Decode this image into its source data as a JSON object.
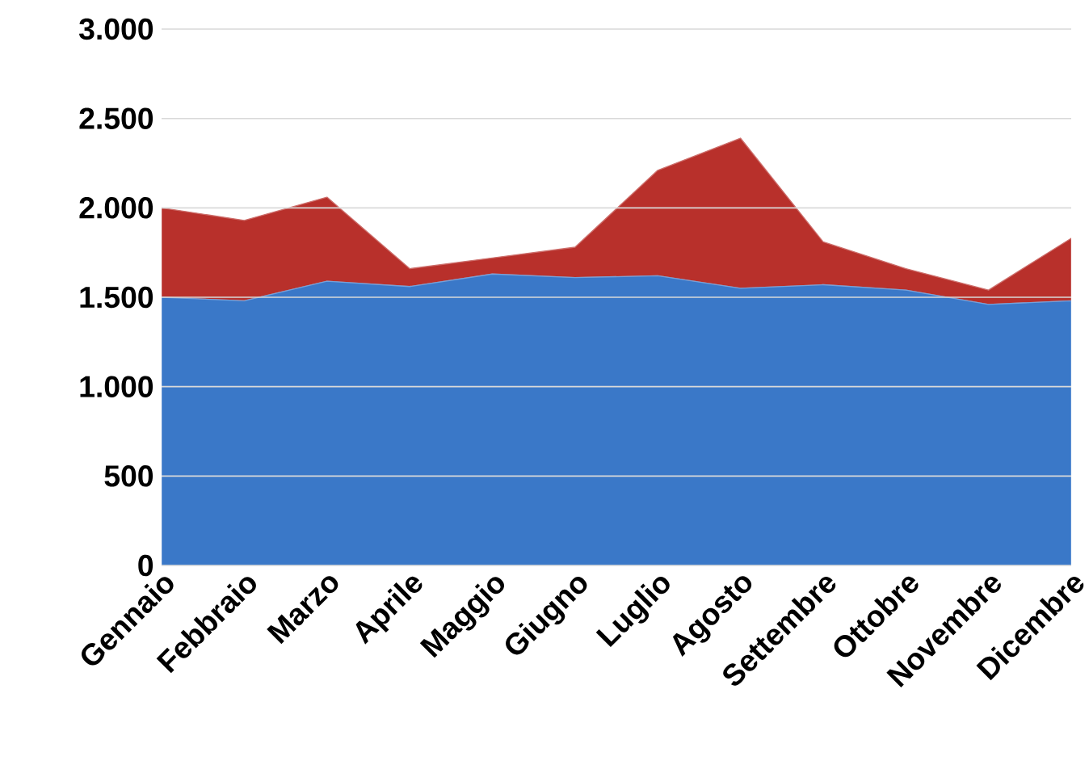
{
  "chart_data": {
    "type": "area",
    "categories": [
      "Gennaio",
      "Febbraio",
      "Marzo",
      "Aprile",
      "Maggio",
      "Giugno",
      "Luglio",
      "Agosto",
      "Settembre",
      "Ottobre",
      "Novembre",
      "Dicembre"
    ],
    "series": [
      {
        "color": "#3a78c8",
        "values": [
          1500,
          1480,
          1590,
          1560,
          1630,
          1610,
          1620,
          1550,
          1570,
          1540,
          1460,
          1480
        ]
      },
      {
        "color": "#b8302b",
        "values": [
          500,
          450,
          470,
          100,
          90,
          170,
          590,
          840,
          240,
          120,
          80,
          350
        ]
      }
    ],
    "stacked": true,
    "ylim": [
      0,
      3000
    ],
    "yticks": [
      0,
      500,
      {
        "value": 1000,
        "label": "1.000"
      },
      {
        "value": 1500,
        "label": "1.500"
      },
      {
        "value": 2000,
        "label": "2.000"
      },
      {
        "value": 2500,
        "label": "2.500"
      },
      {
        "value": 3000,
        "label": "3.000"
      }
    ],
    "grid": "y"
  }
}
